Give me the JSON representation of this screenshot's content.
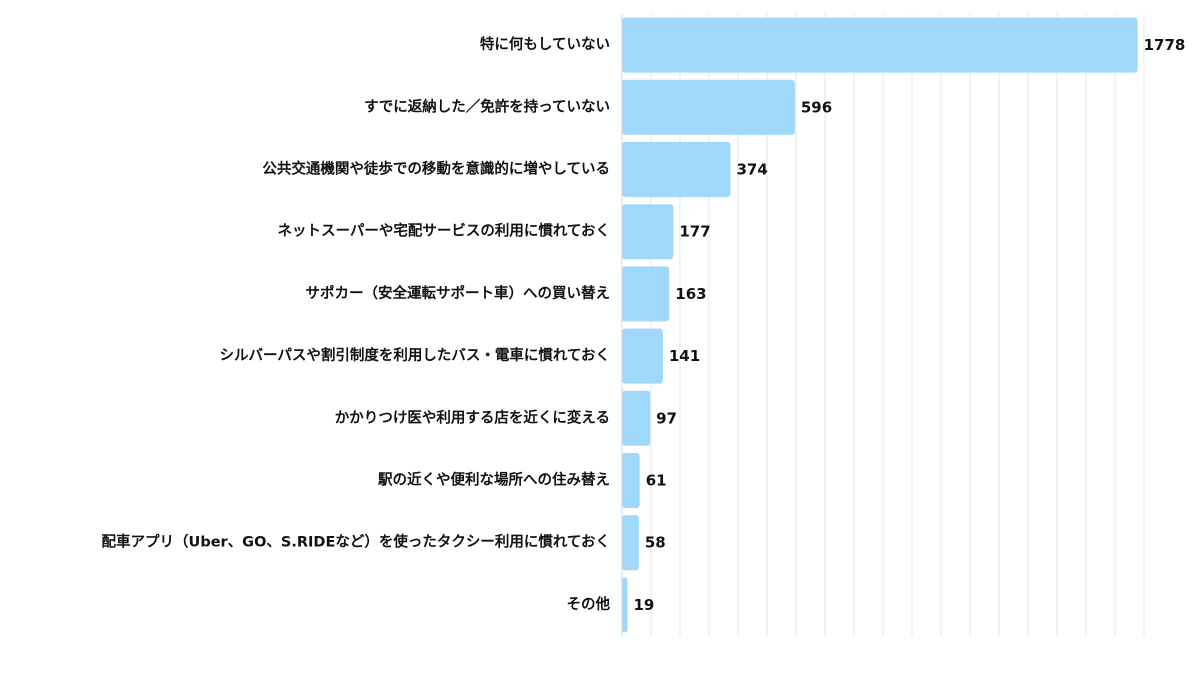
{
  "chart_data": {
    "type": "bar",
    "orientation": "horizontal",
    "title": "",
    "xlabel": "",
    "ylabel": "",
    "categories": [
      "特に何もしていない",
      "すでに返納した／免許を持っていない",
      "公共交通機関や徒歩での移動を意識的に増やしている",
      "ネットスーパーや宅配サービスの利用に慣れておく",
      "サポカー（安全運転サポート車）への買い替え",
      "シルバーパスや割引制度を利用したバス・電車に慣れておく",
      "かかりつけ医や利用する店を近くに変える",
      "駅の近くや便利な場所への住み替え",
      "配車アプリ（Uber、GO、S.RIDEなど）を使ったタクシー利用に慣れておく",
      "その他"
    ],
    "values": [
      1778,
      596,
      374,
      177,
      163,
      141,
      97,
      61,
      58,
      19
    ],
    "xlim": [
      0,
      1800
    ],
    "grid": true,
    "legend": "none",
    "bar_color": "#9fd8fb"
  }
}
